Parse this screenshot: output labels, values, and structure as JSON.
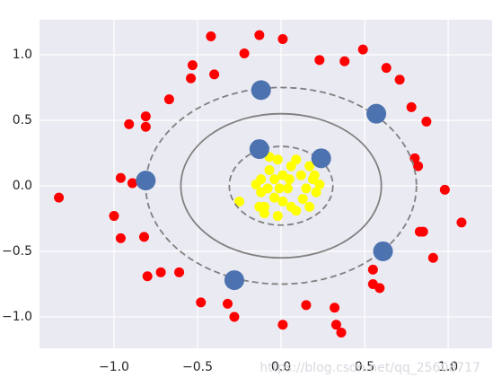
{
  "chart_data": {
    "type": "scatter",
    "xlim": [
      -1.446,
      1.263
    ],
    "ylim": [
      -1.24,
      1.267
    ],
    "xticks": [
      {
        "value": -1,
        "label": "−1.0"
      },
      {
        "value": -0.5,
        "label": "−0.5"
      },
      {
        "value": 0,
        "label": "0.0"
      },
      0.5,
      {
        "value": 1,
        "label": "1.0"
      }
    ],
    "yticks": [
      {
        "value": -1,
        "label": "−1.0"
      },
      {
        "value": -0.5,
        "label": "−0.5"
      },
      {
        "value": 0,
        "label": "0.0"
      },
      0.5,
      {
        "value": 1,
        "label": "1.0"
      }
    ],
    "grid": true,
    "series": [
      {
        "color": "#ff0000",
        "x": [
          -1.33,
          -0.42,
          -0.13,
          0.01,
          -0.53,
          -0.54,
          -0.4,
          -0.22,
          0.23,
          0.38,
          0.49,
          0.63,
          0.71,
          0.78,
          0.87,
          -0.67,
          -0.81,
          -0.91,
          -0.81,
          -0.96,
          -0.89,
          0.8,
          0.82,
          0.98,
          -1.0,
          -0.96,
          -0.82,
          0.83,
          0.85,
          1.08,
          0.91,
          -0.72,
          -0.8,
          -0.61,
          0.55,
          0.55,
          0.59,
          -0.48,
          -0.32,
          -0.28,
          0.15,
          0.32,
          0.33,
          0.36,
          0.01
        ],
        "y": [
          -0.09,
          1.14,
          1.15,
          1.12,
          0.92,
          0.82,
          0.85,
          1.01,
          0.96,
          0.95,
          1.04,
          0.9,
          0.81,
          0.6,
          0.49,
          0.66,
          0.53,
          0.47,
          0.45,
          0.06,
          0.02,
          0.21,
          0.15,
          -0.03,
          -0.23,
          -0.4,
          -0.39,
          -0.35,
          -0.35,
          -0.28,
          -0.55,
          -0.66,
          -0.69,
          -0.66,
          -0.64,
          -0.75,
          -0.78,
          -0.89,
          -0.9,
          -1.0,
          -0.91,
          -0.93,
          -1.06,
          -1.12,
          -1.06
        ]
      },
      {
        "color": "#ffff00",
        "x": [
          -0.25,
          -0.15,
          -0.12,
          -0.1,
          -0.07,
          -0.04,
          -0.02,
          0.01,
          0.04,
          0.06,
          0.09,
          0.12,
          0.15,
          0.17,
          0.19,
          0.21,
          0.23,
          0.09,
          0.06,
          0.01,
          -0.04,
          -0.08,
          -0.13,
          -0.1,
          -0.02,
          0.13,
          0.17,
          -0.07,
          0.05,
          -0.01,
          -0.12,
          0.2
        ],
        "y": [
          -0.12,
          0.01,
          -0.05,
          -0.16,
          0.12,
          0.05,
          0.2,
          0.08,
          -0.02,
          0.15,
          0.2,
          0.08,
          -0.02,
          0.15,
          0.05,
          -0.05,
          0.01,
          -0.19,
          -0.16,
          -0.12,
          -0.09,
          -0.02,
          -0.16,
          -0.21,
          -0.23,
          -0.1,
          -0.16,
          0.22,
          0.05,
          -0.02,
          0.05,
          0.08
        ]
      },
      {
        "color": "#4c72b0",
        "x": [
          -0.12,
          0.57,
          -0.13,
          0.24,
          -0.81,
          0.61,
          -0.28
        ],
        "y": [
          0.73,
          0.55,
          0.28,
          0.21,
          0.04,
          -0.5,
          -0.72
        ]
      }
    ],
    "contours": [
      {
        "rx": 0.31,
        "ry": 0.3,
        "style": "dashed"
      },
      {
        "rx": 0.6,
        "ry": 0.55,
        "style": "solid"
      },
      {
        "rx": 0.81,
        "ry": 0.75,
        "style": "dashed"
      }
    ],
    "contour_color": "#808080",
    "watermark": "https://blog.csdn.net/qq_25608717"
  }
}
